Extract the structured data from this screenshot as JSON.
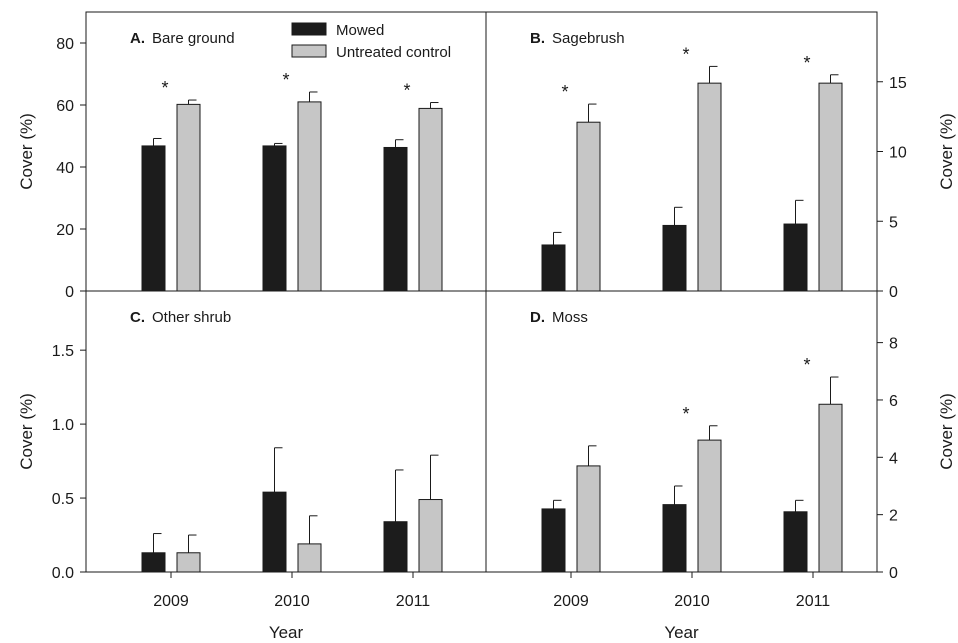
{
  "chart_data": [
    {
      "type": "bar",
      "panel_letter": "A.",
      "panel_title": "Bare ground",
      "categories": [
        "2009",
        "2010",
        "2011"
      ],
      "series": [
        {
          "name": "Mowed",
          "values": [
            46.8,
            46.8,
            46.3
          ],
          "errors": [
            2.4,
            0.8,
            2.5
          ]
        },
        {
          "name": "Untreated control",
          "values": [
            60.2,
            61.0,
            58.9
          ],
          "errors": [
            1.4,
            3.2,
            1.9
          ]
        }
      ],
      "significant": [
        true,
        true,
        true
      ],
      "significance_marker": "*",
      "ylabel": "Cover (%)",
      "ylim": [
        0,
        90
      ],
      "yticks": [
        "0",
        "20",
        "40",
        "60",
        "80"
      ],
      "y_axis_side": "left",
      "legend": "top"
    },
    {
      "type": "bar",
      "panel_letter": "B.",
      "panel_title": "Sagebrush",
      "categories": [
        "2009",
        "2010",
        "2011"
      ],
      "series": [
        {
          "name": "Mowed",
          "values": [
            3.3,
            4.7,
            4.8
          ],
          "errors": [
            0.9,
            1.3,
            1.7
          ]
        },
        {
          "name": "Untreated control",
          "values": [
            12.1,
            14.9,
            14.9
          ],
          "errors": [
            1.3,
            1.2,
            0.6
          ]
        }
      ],
      "significant": [
        true,
        true,
        true
      ],
      "significance_marker": "*",
      "ylabel": "Cover (%)",
      "ylim": [
        0,
        20
      ],
      "yticks": [
        "0",
        "5",
        "10",
        "15"
      ],
      "y_axis_side": "right"
    },
    {
      "type": "bar",
      "panel_letter": "C.",
      "panel_title": "Other shrub",
      "categories": [
        "2009",
        "2010",
        "2011"
      ],
      "series": [
        {
          "name": "Mowed",
          "values": [
            0.13,
            0.54,
            0.34
          ],
          "errors": [
            0.13,
            0.3,
            0.35
          ]
        },
        {
          "name": "Untreated control",
          "values": [
            0.13,
            0.19,
            0.49
          ],
          "errors": [
            0.12,
            0.19,
            0.3
          ]
        }
      ],
      "significant": [
        false,
        false,
        false
      ],
      "ylabel": "Cover (%)",
      "ylim": [
        0,
        1.9
      ],
      "yticks": [
        "0.0",
        "0.5",
        "1.0",
        "1.5"
      ],
      "y_axis_side": "left",
      "xlabel": "Year"
    },
    {
      "type": "bar",
      "panel_letter": "D.",
      "panel_title": "Moss",
      "categories": [
        "2009",
        "2010",
        "2011"
      ],
      "series": [
        {
          "name": "Mowed",
          "values": [
            2.2,
            2.35,
            2.1
          ],
          "errors": [
            0.3,
            0.65,
            0.4
          ]
        },
        {
          "name": "Untreated control",
          "values": [
            3.7,
            4.6,
            5.85
          ],
          "errors": [
            0.7,
            0.5,
            0.95
          ]
        }
      ],
      "significant": [
        false,
        true,
        true
      ],
      "significance_marker": "*",
      "ylabel": "Cover (%)",
      "ylim": [
        0,
        9.8
      ],
      "yticks": [
        "0",
        "2",
        "4",
        "6",
        "8"
      ],
      "y_axis_side": "right",
      "xlabel": "Year"
    }
  ],
  "colors": {
    "mowed": "#1c1c1c",
    "control": "#c6c6c6",
    "axis": "#1a1a1a"
  }
}
